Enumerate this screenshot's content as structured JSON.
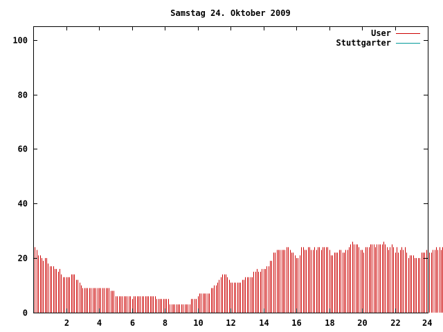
{
  "chart_data": {
    "type": "bar",
    "title": "Samstag 24. Oktober 2009",
    "xlabel": "",
    "ylabel": "",
    "xlim": [
      0,
      24
    ],
    "ylim": [
      0,
      105
    ],
    "x_ticks": [
      {
        "value": 2,
        "label": "2"
      },
      {
        "value": 4,
        "label": "4"
      },
      {
        "value": 6,
        "label": "6"
      },
      {
        "value": 8,
        "label": "8"
      },
      {
        "value": 10,
        "label": "10"
      },
      {
        "value": 12,
        "label": "12"
      },
      {
        "value": 14,
        "label": "14"
      },
      {
        "value": 16,
        "label": "16"
      },
      {
        "value": 18,
        "label": "18"
      },
      {
        "value": 20,
        "label": "20"
      },
      {
        "value": 22,
        "label": "22"
      },
      {
        "value": 24,
        "label": "24"
      }
    ],
    "y_ticks": [
      {
        "value": 0,
        "label": "0"
      },
      {
        "value": 20,
        "label": "20"
      },
      {
        "value": 40,
        "label": "40"
      },
      {
        "value": 60,
        "label": "60"
      },
      {
        "value": 80,
        "label": "80"
      },
      {
        "value": 100,
        "label": "100"
      }
    ],
    "grid": false,
    "legend_position": "top-right",
    "series": [
      {
        "name": "User",
        "color": "#cc0000",
        "interval_hours": 0.1,
        "values": [
          25,
          24,
          23,
          21,
          21,
          20,
          19,
          20,
          20,
          18,
          17,
          17,
          17,
          16,
          16,
          15,
          16,
          14,
          13,
          13,
          13,
          13,
          13,
          14,
          14,
          14,
          12,
          12,
          11,
          10,
          9,
          9,
          9,
          9,
          9,
          9,
          9,
          9,
          9,
          9,
          9,
          9,
          9,
          9,
          9,
          9,
          9,
          8,
          8,
          8,
          6,
          6,
          6,
          6,
          6,
          6,
          6,
          6,
          6,
          6,
          5,
          6,
          6,
          6,
          6,
          6,
          6,
          6,
          6,
          6,
          6,
          6,
          6,
          6,
          6,
          5,
          5,
          5,
          5,
          5,
          5,
          5,
          5,
          3,
          3,
          3,
          3,
          3,
          3,
          3,
          3,
          3,
          3,
          3,
          3,
          3,
          5,
          5,
          5,
          5,
          6,
          7,
          7,
          7,
          7,
          7,
          7,
          7,
          9,
          9,
          10,
          10,
          11,
          12,
          13,
          14,
          14,
          14,
          13,
          12,
          11,
          11,
          11,
          11,
          11,
          11,
          11,
          12,
          12,
          13,
          13,
          13,
          13,
          13,
          15,
          15,
          16,
          15,
          15,
          16,
          16,
          16,
          17,
          17,
          19,
          19,
          22,
          22,
          23,
          23,
          23,
          23,
          23,
          23,
          24,
          24,
          23,
          22,
          22,
          21,
          20,
          20,
          21,
          24,
          24,
          23,
          23,
          24,
          24,
          23,
          23,
          24,
          23,
          24,
          24,
          23,
          24,
          24,
          24,
          24,
          23,
          21,
          21,
          22,
          22,
          22,
          23,
          23,
          22,
          22,
          23,
          23,
          24,
          25,
          26,
          25,
          25,
          25,
          24,
          23,
          23,
          22,
          24,
          24,
          24,
          25,
          25,
          25,
          24,
          25,
          25,
          25,
          25,
          26,
          25,
          24,
          23,
          24,
          25,
          24,
          22,
          24,
          22,
          23,
          24,
          23,
          24,
          22,
          20,
          21,
          21,
          21,
          20,
          20,
          20,
          20,
          22,
          22,
          22,
          23,
          23,
          22,
          22,
          23,
          23,
          24,
          23,
          24,
          23,
          24,
          23,
          23,
          23,
          23,
          22,
          22,
          21,
          19,
          21,
          21,
          21,
          21,
          21,
          19,
          20,
          20,
          20,
          20,
          20,
          20,
          21,
          19,
          18,
          17,
          16,
          15,
          15,
          15,
          15,
          16,
          16,
          18,
          18,
          17,
          16,
          16,
          16,
          17,
          15,
          15,
          15,
          14,
          14,
          14,
          14,
          14,
          14,
          14
        ]
      },
      {
        "name": "Stuttgarter",
        "color": "#009999",
        "values": []
      }
    ]
  }
}
